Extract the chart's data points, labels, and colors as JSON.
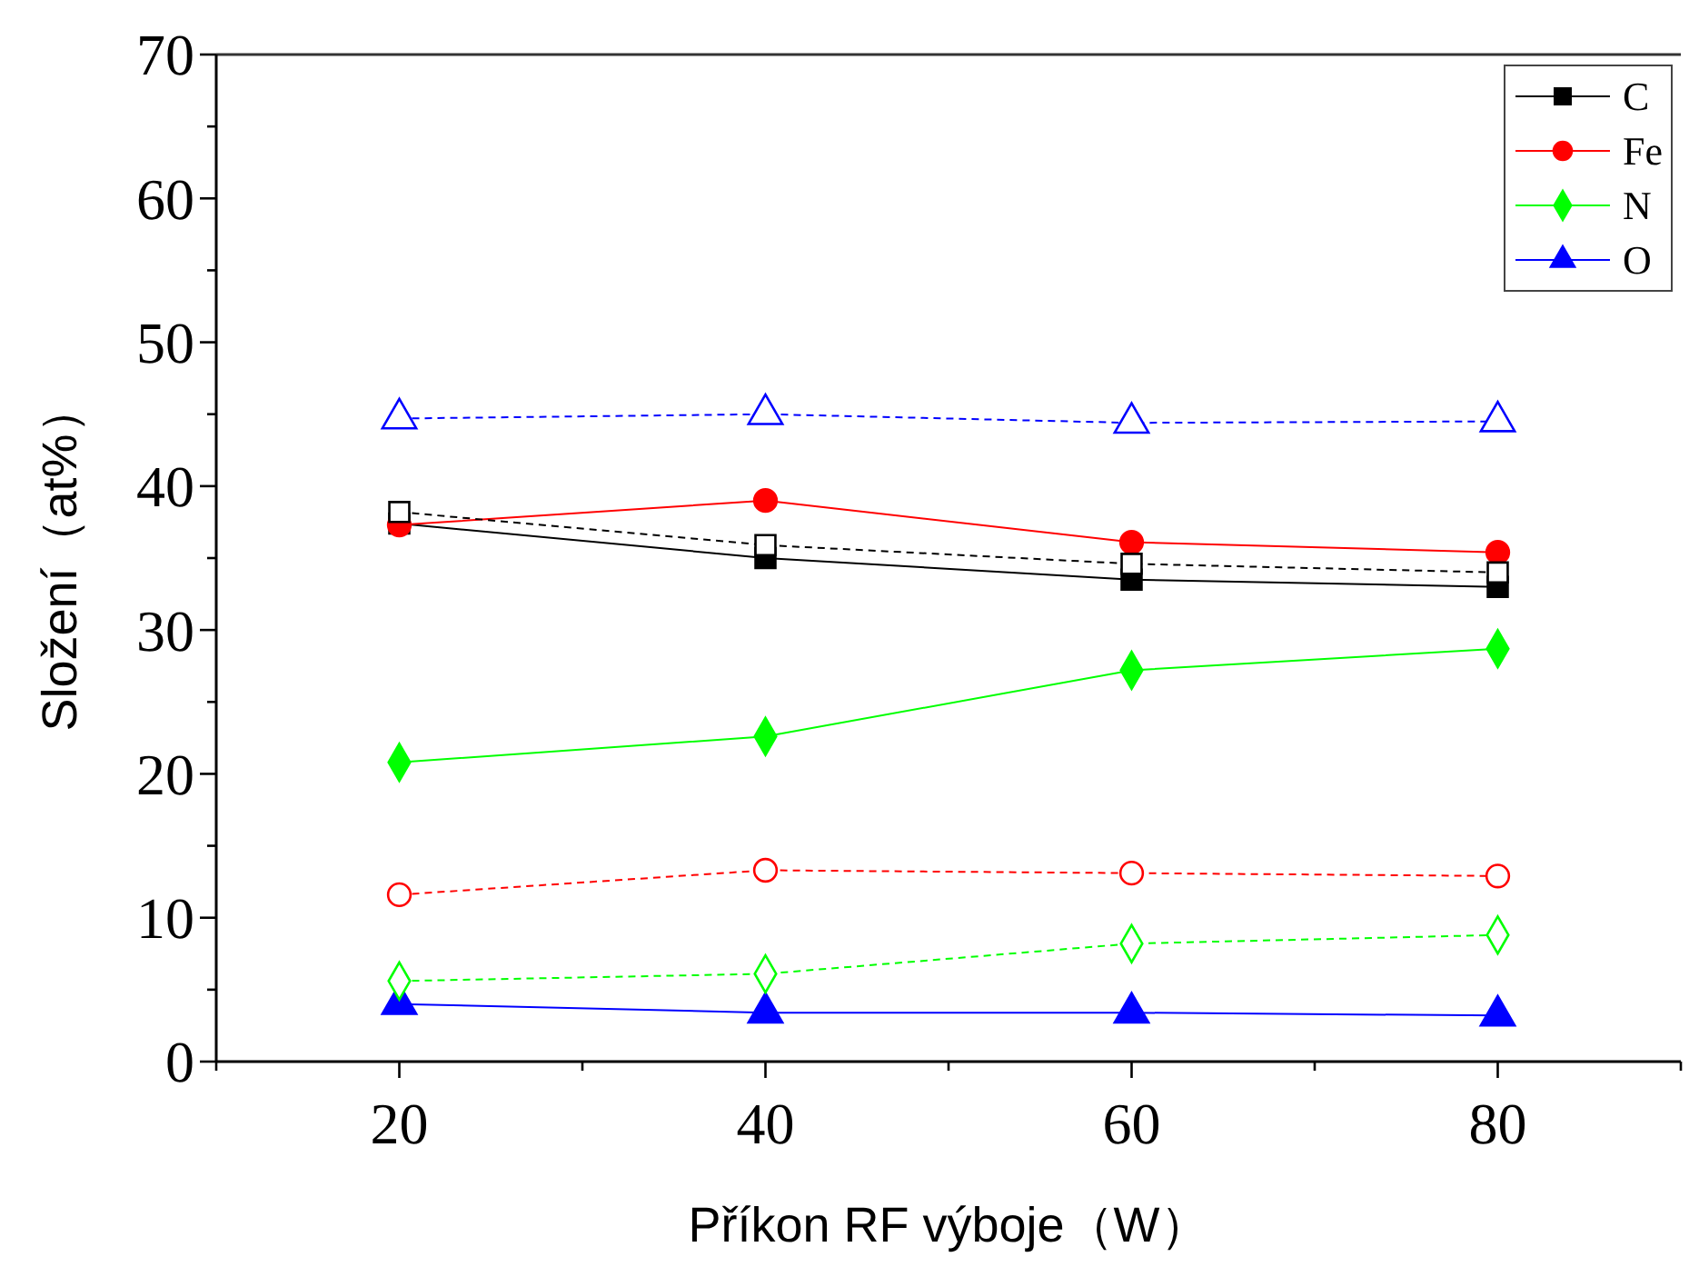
{
  "chart_data": {
    "type": "line",
    "xlabel": "Příkon RF výboje（W）",
    "ylabel": "Složení（at%）",
    "x": [
      20,
      40,
      60,
      80
    ],
    "xlim": [
      10,
      90
    ],
    "xticks": [
      {
        "value": 10,
        "label": null
      },
      20,
      {
        "value": 30,
        "label": null
      },
      40,
      {
        "value": 50,
        "label": null
      },
      60,
      {
        "value": 70,
        "label": null
      },
      80,
      {
        "value": 90,
        "label": null
      }
    ],
    "ylim": [
      0,
      70
    ],
    "yticks": [
      0,
      {
        "value": 5,
        "label": null
      },
      10,
      {
        "value": 15,
        "label": null
      },
      20,
      {
        "value": 25,
        "label": null
      },
      30,
      {
        "value": 35,
        "label": null
      },
      40,
      {
        "value": 45,
        "label": null
      },
      50,
      {
        "value": 55,
        "label": null
      },
      60,
      {
        "value": 65,
        "label": null
      },
      70
    ],
    "legend": "top right",
    "grid": false,
    "series": [
      {
        "name": "C",
        "color": "#000000",
        "marker": "square",
        "line_style": "solid",
        "values": [
          37.4,
          35.0,
          33.5,
          33.0
        ]
      },
      {
        "name": "Fe",
        "color": "#ff0000",
        "marker": "circle",
        "line_style": "solid",
        "values": [
          37.3,
          39.0,
          36.1,
          35.4
        ]
      },
      {
        "name": "N",
        "color": "#00ff00",
        "marker": "diamond",
        "line_style": "solid",
        "values": [
          20.8,
          22.6,
          27.2,
          28.7
        ]
      },
      {
        "name": "O",
        "color": "#0000ff",
        "marker": "triangle",
        "line_style": "solid",
        "values": [
          4.0,
          3.4,
          3.4,
          3.2
        ]
      },
      {
        "color": "#000000",
        "marker": "square",
        "line_style": "dashed",
        "values": [
          38.2,
          35.9,
          34.6,
          34.0
        ]
      },
      {
        "color": "#ff0000",
        "marker": "circle",
        "line_style": "dashed",
        "values": [
          11.6,
          13.3,
          13.1,
          12.9
        ]
      },
      {
        "color": "#00ff00",
        "marker": "diamond",
        "line_style": "dashed",
        "values": [
          5.6,
          6.1,
          8.2,
          8.8
        ]
      },
      {
        "color": "#0000ff",
        "marker": "triangle",
        "line_style": "dashed",
        "values": [
          44.7,
          45.0,
          44.4,
          44.5
        ]
      }
    ]
  }
}
